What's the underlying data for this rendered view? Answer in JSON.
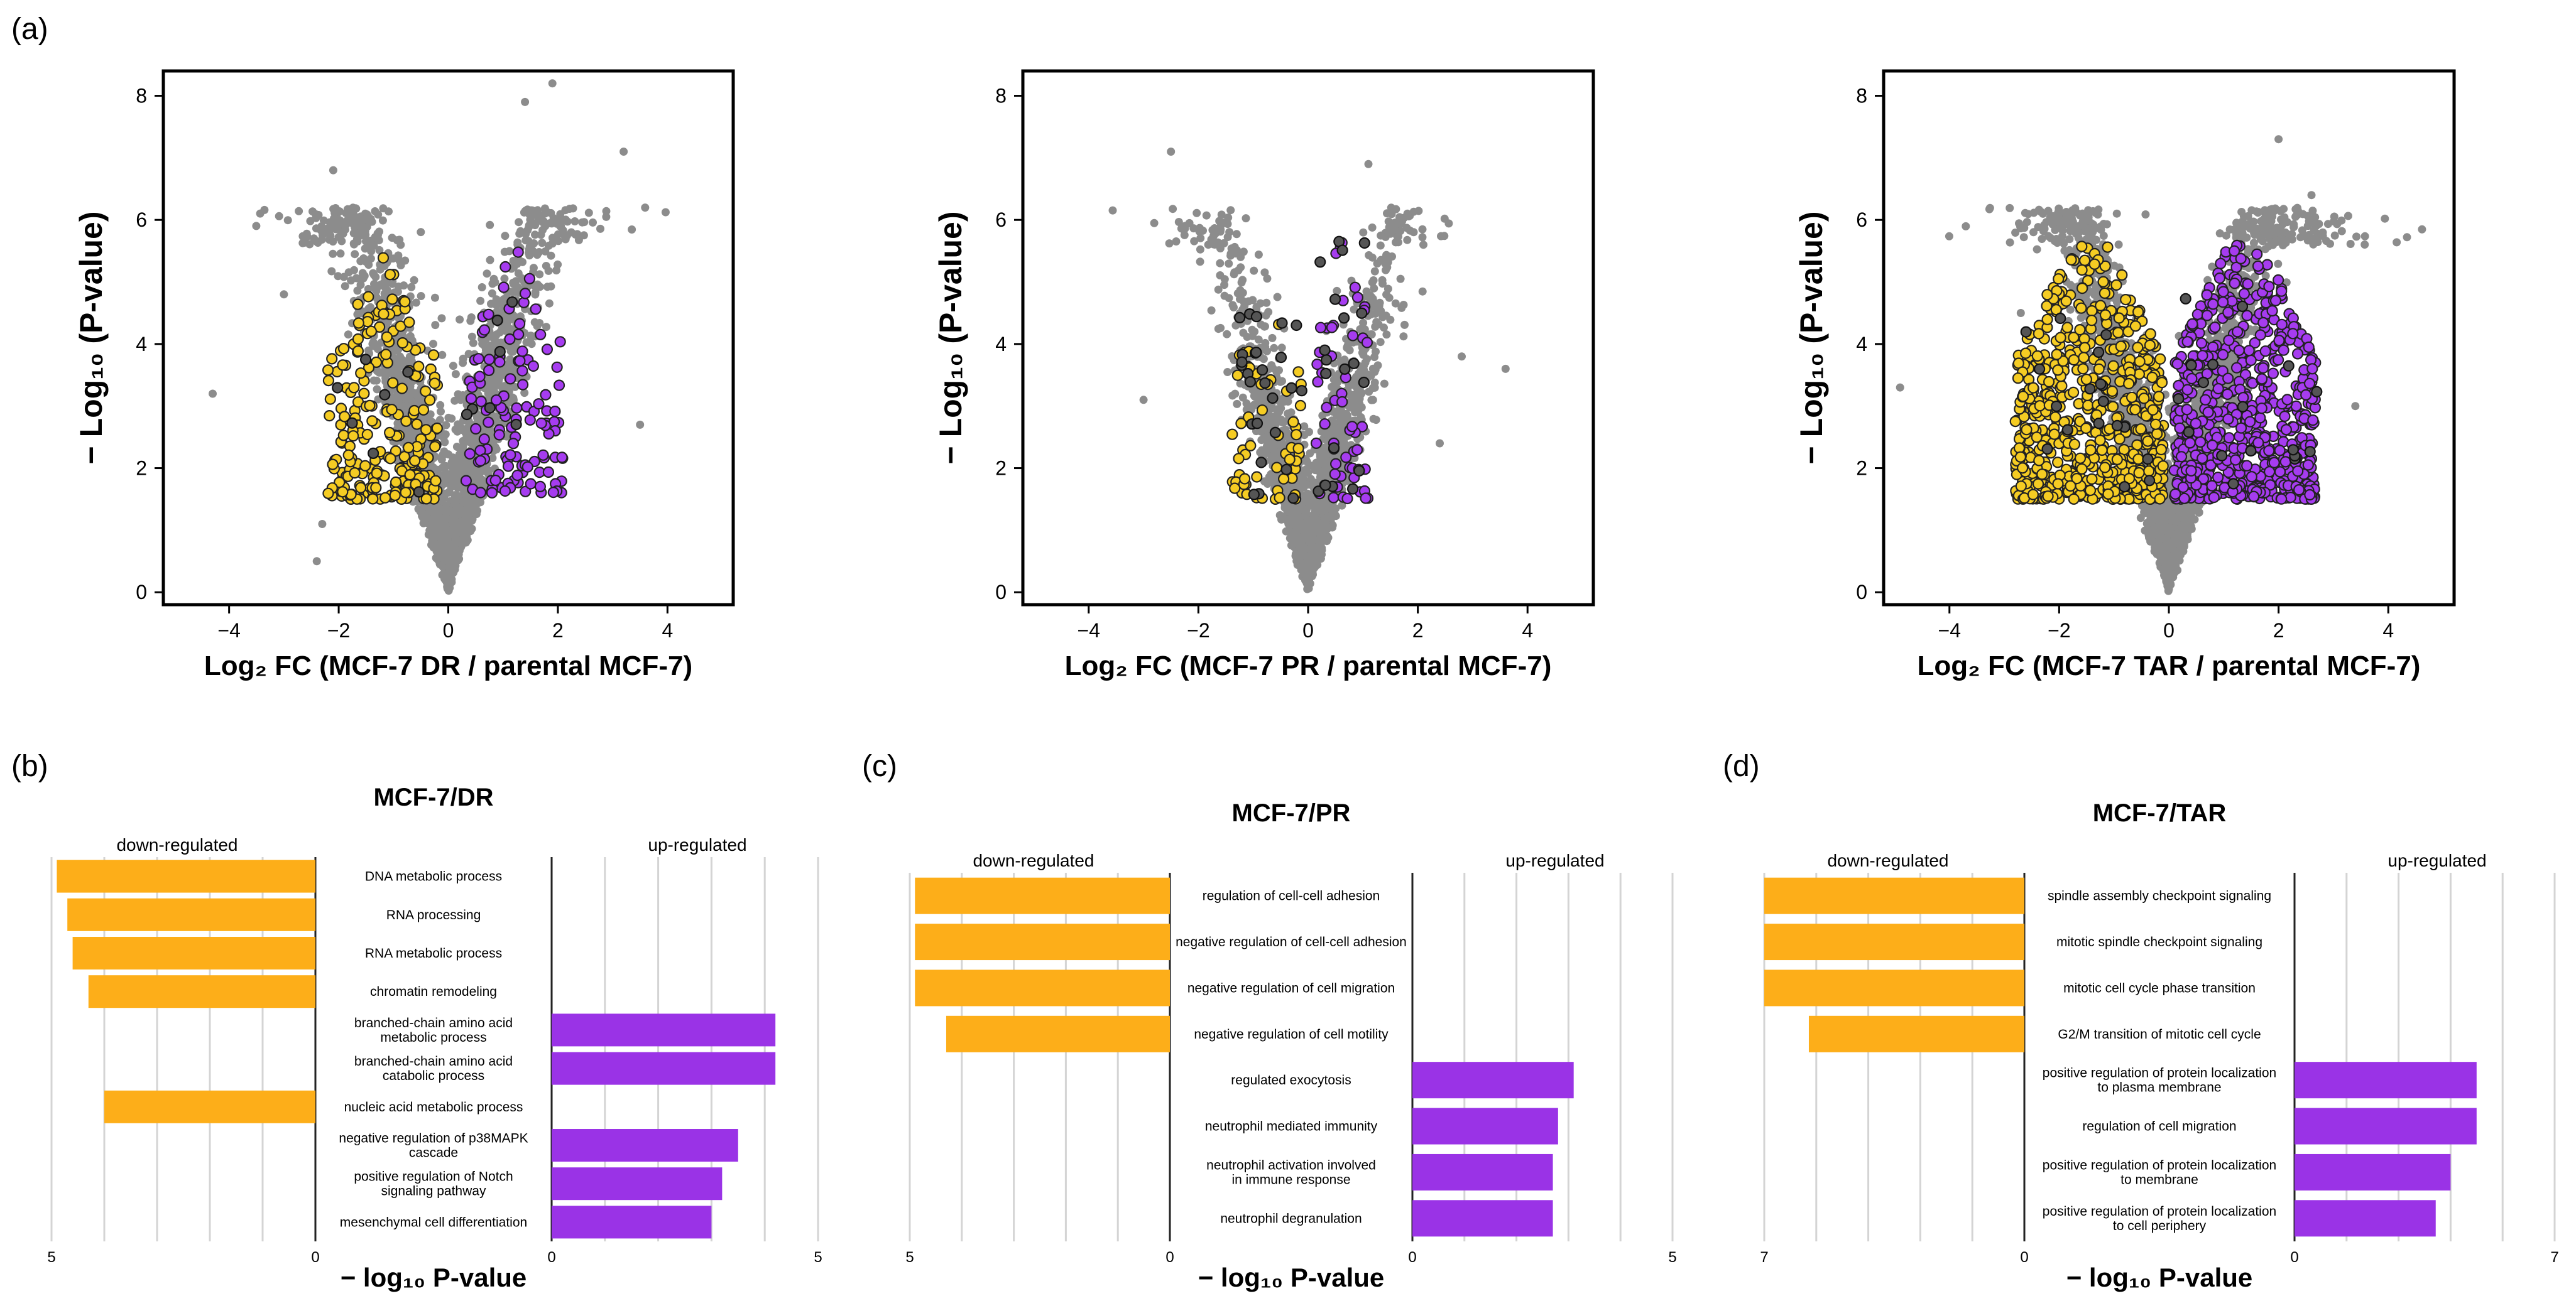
{
  "figure": {
    "panel_labels": {
      "a": "(a)",
      "b": "(b)",
      "c": "(c)",
      "d": "(d)"
    }
  },
  "colors": {
    "gray": "#8c8c8c",
    "yellow": "#f5cc23",
    "purple": "#a63cf0",
    "dark": "#555555",
    "orange": "#fdae19",
    "bar_purple": "#9a33e6",
    "grid": "#d4d4d4"
  },
  "chart_data": [
    {
      "type": "scatter",
      "id": "volcano-dr",
      "xlabel": "Log₂ FC (MCF-7 DR / parental MCF-7)",
      "ylabel": "− Log₁₀ (P-value)",
      "xlim": [
        -5.2,
        5.2
      ],
      "ylim": [
        -0.2,
        8.4
      ],
      "xticks": [
        -4,
        -2,
        0,
        2,
        4
      ],
      "yticks": [
        0,
        2,
        4,
        6,
        8
      ],
      "xtick_labels": [
        "−4",
        "−2",
        "0",
        "2",
        "4"
      ],
      "ytick_labels": [
        "0",
        "2",
        "4",
        "6",
        "8"
      ],
      "background_spread": [
        0.5,
        0.4
      ],
      "n_background": 2200,
      "n_down": 230,
      "n_up": 120,
      "n_dark": 14,
      "outliers": [
        [
          -4.3,
          3.2
        ],
        [
          -3.0,
          4.8
        ],
        [
          -2.1,
          6.8
        ],
        [
          1.4,
          7.9
        ],
        [
          1.9,
          8.2
        ],
        [
          3.2,
          7.1
        ],
        [
          3.5,
          2.7
        ],
        [
          -2.3,
          1.1
        ],
        [
          -2.4,
          0.5
        ]
      ],
      "highlights": {
        "down": [
          -2.2,
          -0.2,
          1.5,
          5.5
        ],
        "up": [
          0.3,
          2.1,
          1.6,
          5.9
        ]
      }
    },
    {
      "type": "scatter",
      "id": "volcano-pr",
      "xlabel": "Log₂ FC (MCF-7 PR / parental MCF-7)",
      "ylabel": "− Log₁₀ (P-value)",
      "xlim": [
        -5.2,
        5.2
      ],
      "ylim": [
        -0.2,
        8.4
      ],
      "xticks": [
        -4,
        -2,
        0,
        2,
        4
      ],
      "yticks": [
        0,
        2,
        4,
        6,
        8
      ],
      "xtick_labels": [
        "−4",
        "−2",
        "0",
        "2",
        "4"
      ],
      "ytick_labels": [
        "0",
        "2",
        "4",
        "6",
        "8"
      ],
      "background_spread": [
        0.4,
        0.35
      ],
      "n_background": 1700,
      "n_down": 55,
      "n_up": 55,
      "n_dark": 45,
      "outliers": [
        [
          -2.5,
          7.1
        ],
        [
          -3.0,
          3.1
        ],
        [
          3.6,
          3.6
        ],
        [
          1.1,
          6.9
        ],
        [
          2.8,
          3.8
        ],
        [
          2.4,
          2.4
        ]
      ],
      "highlights": {
        "down": [
          -1.4,
          -0.1,
          1.5,
          5.5
        ],
        "up": [
          0.1,
          1.1,
          1.5,
          6.9
        ]
      }
    },
    {
      "type": "scatter",
      "id": "volcano-tar",
      "xlabel": "Log₂ FC (MCF-7 TAR / parental MCF-7)",
      "ylabel": "− Log₁₀ (P-value)",
      "xlim": [
        -5.2,
        5.2
      ],
      "ylim": [
        -0.2,
        8.4
      ],
      "xticks": [
        -4,
        -2,
        0,
        2,
        4
      ],
      "yticks": [
        0,
        2,
        4,
        6,
        8
      ],
      "xtick_labels": [
        "−4",
        "−2",
        "0",
        "2",
        "4"
      ],
      "ytick_labels": [
        "0",
        "2",
        "4",
        "6",
        "8"
      ],
      "background_spread": [
        0.55,
        0.4
      ],
      "n_background": 2400,
      "n_down": 650,
      "n_up": 650,
      "n_dark": 35,
      "outliers": [
        [
          -4.9,
          3.3
        ],
        [
          2.0,
          7.3
        ],
        [
          2.6,
          6.4
        ],
        [
          3.4,
          3.0
        ],
        [
          2.2,
          1.7
        ],
        [
          -2.7,
          4.5
        ]
      ],
      "highlights": {
        "down": [
          -2.8,
          -0.1,
          1.5,
          5.6
        ],
        "up": [
          0.1,
          2.7,
          1.5,
          5.6
        ]
      }
    },
    {
      "type": "bar",
      "id": "go-dr",
      "title": "MCF-7/DR",
      "down_label": "down-regulated",
      "up_label": "up-regulated",
      "xlabel": "− log₁₀ P-value",
      "max": 5,
      "down_max_label": "5",
      "up_max_label": "5",
      "zero_label": "0",
      "categories": [
        {
          "term": [
            "DNA metabolic process"
          ],
          "down": 4.9,
          "up": 0
        },
        {
          "term": [
            "RNA processing"
          ],
          "down": 4.7,
          "up": 0
        },
        {
          "term": [
            "RNA metabolic process"
          ],
          "down": 4.6,
          "up": 0
        },
        {
          "term": [
            "chromatin remodeling"
          ],
          "down": 4.3,
          "up": 0
        },
        {
          "term": [
            "branched-chain amino acid",
            "metabolic process"
          ],
          "down": 0,
          "up": 4.2
        },
        {
          "term": [
            "branched-chain amino acid",
            "catabolic process"
          ],
          "down": 0,
          "up": 4.2
        },
        {
          "term": [
            "nucleic acid metabolic process"
          ],
          "down": 4.0,
          "up": 0
        },
        {
          "term": [
            "negative regulation of p38MAPK",
            "cascade"
          ],
          "down": 0,
          "up": 3.5
        },
        {
          "term": [
            "positive regulation of  Notch",
            "signaling pathway"
          ],
          "down": 0,
          "up": 3.2
        },
        {
          "term": [
            "mesenchymal cell differentiation"
          ],
          "down": 0,
          "up": 3.0
        }
      ]
    },
    {
      "type": "bar",
      "id": "go-pr",
      "title": "MCF-7/PR",
      "down_label": "down-regulated",
      "up_label": "up-regulated",
      "xlabel": "− log₁₀ P-value",
      "max": 5,
      "down_max_label": "5",
      "up_max_label": "5",
      "zero_label": "0",
      "categories": [
        {
          "term": [
            "regulation of cell-cell adhesion"
          ],
          "down": 4.9,
          "up": 0
        },
        {
          "term": [
            "negative regulation of cell-cell adhesion"
          ],
          "down": 4.9,
          "up": 0
        },
        {
          "term": [
            "negative regulation of cell migration"
          ],
          "down": 4.9,
          "up": 0
        },
        {
          "term": [
            "negative regulation of cell motility"
          ],
          "down": 4.3,
          "up": 0
        },
        {
          "term": [
            "regulated exocytosis"
          ],
          "down": 0,
          "up": 3.1
        },
        {
          "term": [
            "neutrophil mediated immunity"
          ],
          "down": 0,
          "up": 2.8
        },
        {
          "term": [
            "neutrophil activation involved",
            "in immune response"
          ],
          "down": 0,
          "up": 2.7
        },
        {
          "term": [
            "neutrophil degranulation"
          ],
          "down": 0,
          "up": 2.7
        }
      ]
    },
    {
      "type": "bar",
      "id": "go-tar",
      "title": "MCF-7/TAR",
      "down_label": "down-regulated",
      "up_label": "up-regulated",
      "xlabel": "− log₁₀ P-value",
      "max": 7,
      "down_max_label": "7",
      "up_max_label": "7",
      "zero_label": "0",
      "categories": [
        {
          "term": [
            "spindle assembly checkpoint signaling"
          ],
          "down": 7.0,
          "up": 0
        },
        {
          "term": [
            "mitotic spindle checkpoint signaling"
          ],
          "down": 7.0,
          "up": 0
        },
        {
          "term": [
            "mitotic cell cycle phase transition"
          ],
          "down": 7.0,
          "up": 0
        },
        {
          "term": [
            "G2/M transition of mitotic cell cycle"
          ],
          "down": 5.8,
          "up": 0
        },
        {
          "term": [
            "positive regulation of protein localization",
            "to plasma membrane"
          ],
          "down": 0,
          "up": 4.9
        },
        {
          "term": [
            "regulation of cell migration"
          ],
          "down": 0,
          "up": 4.9
        },
        {
          "term": [
            "positive regulation of protein localization",
            "to membrane"
          ],
          "down": 0,
          "up": 4.2
        },
        {
          "term": [
            "positive regulation of protein localization",
            "to cell periphery"
          ],
          "down": 0,
          "up": 3.8
        }
      ]
    }
  ]
}
